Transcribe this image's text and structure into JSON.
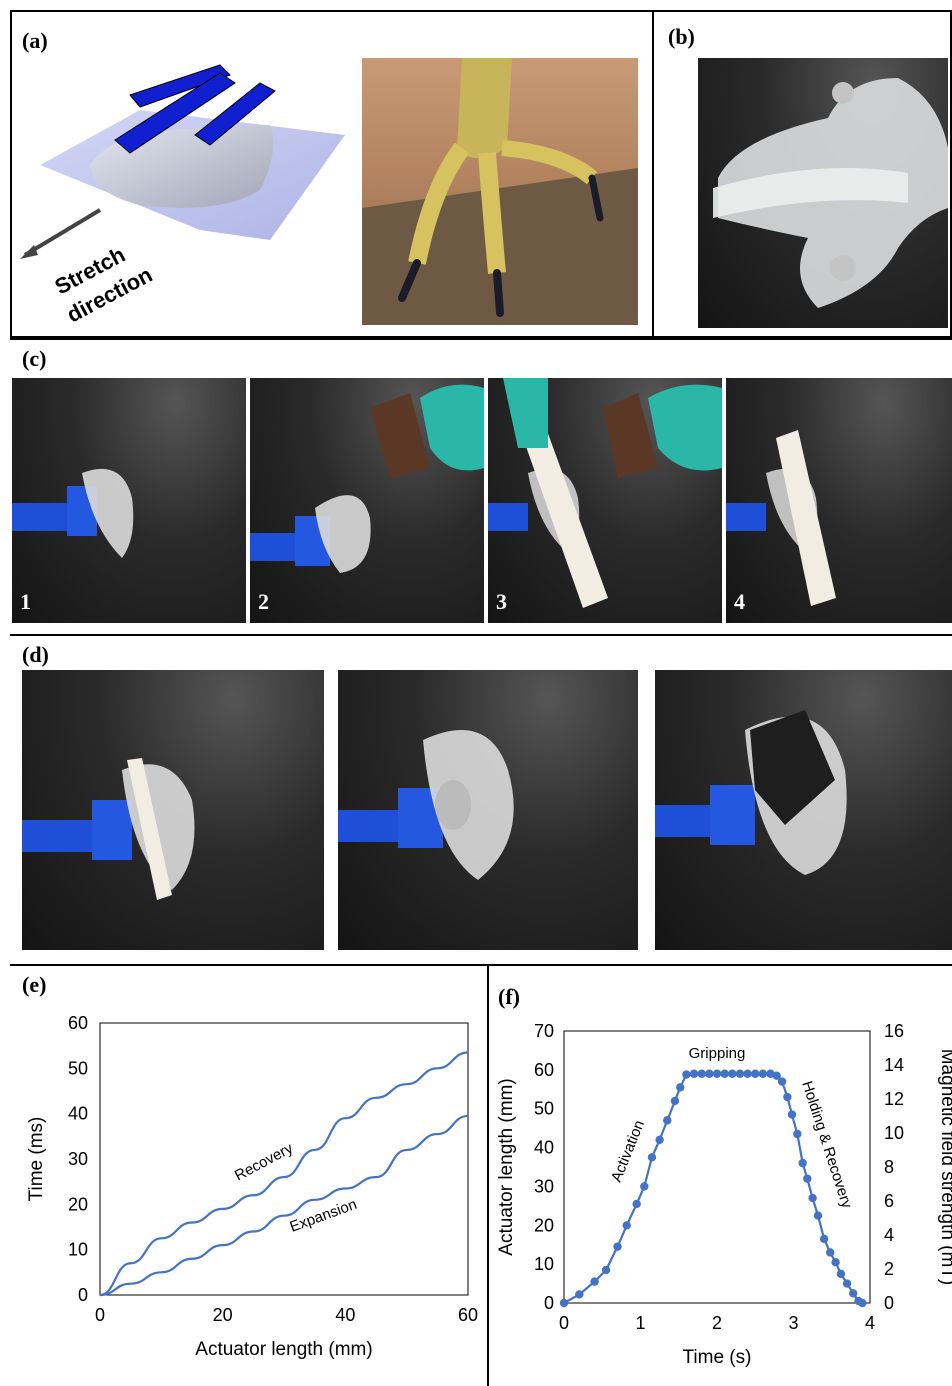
{
  "panels": {
    "a": {
      "label": "(a)",
      "stretch_text_1": "Stretch",
      "stretch_text_2": "direction"
    },
    "b": {
      "label": "(b)"
    },
    "c": {
      "label": "(c)",
      "frames": [
        "1",
        "2",
        "3",
        "4"
      ]
    },
    "d": {
      "label": "(d)"
    },
    "e": {
      "label": "(e)"
    },
    "f": {
      "label": "(f)"
    }
  },
  "chart_data": [
    {
      "type": "line",
      "panel": "e",
      "xlabel": "Actuator length (mm)",
      "ylabel": "Time (ms)",
      "xlim": [
        0,
        60
      ],
      "ylim": [
        0,
        60
      ],
      "xticks": [
        0,
        20,
        40,
        60
      ],
      "yticks": [
        0,
        10,
        20,
        30,
        40,
        50,
        60
      ],
      "grid": false,
      "color": "#4472C4",
      "series": [
        {
          "name": "Recovery",
          "x": [
            0,
            5,
            10,
            15,
            20,
            25,
            30,
            35,
            40,
            45,
            50,
            55,
            60
          ],
          "y": [
            0,
            7,
            12.5,
            16,
            19,
            22,
            26,
            32,
            39,
            43.5,
            46.5,
            50,
            53.5
          ]
        },
        {
          "name": "Expansion",
          "x": [
            0,
            5,
            10,
            15,
            20,
            25,
            30,
            35,
            40,
            45,
            50,
            55,
            60
          ],
          "y": [
            0,
            2.5,
            5,
            8,
            11,
            14,
            17.5,
            21,
            23.5,
            26,
            32,
            35.5,
            39.5
          ]
        }
      ],
      "annotations": [
        "Recovery",
        "Expansion"
      ]
    },
    {
      "type": "line",
      "panel": "f",
      "xlabel": "Time (s)",
      "ylabel": "Actuator length (mm)",
      "y2label": "Magnetic field strength (mT)",
      "xlim": [
        0,
        4
      ],
      "ylim": [
        0,
        70
      ],
      "y2lim": [
        0,
        16
      ],
      "xticks": [
        0,
        1,
        2,
        3,
        4
      ],
      "yticks": [
        0,
        10,
        20,
        30,
        40,
        50,
        60,
        70
      ],
      "y2ticks": [
        0,
        2,
        4,
        6,
        8,
        10,
        12,
        14,
        16
      ],
      "grid": false,
      "color": "#4472C4",
      "series": [
        {
          "x": [
            0,
            0.2,
            0.4,
            0.55,
            0.7,
            0.82,
            0.95,
            1.05,
            1.15,
            1.25,
            1.35,
            1.45,
            1.52,
            1.6,
            1.7,
            1.8,
            1.9,
            2.0,
            2.1,
            2.2,
            2.3,
            2.4,
            2.5,
            2.6,
            2.7,
            2.78,
            2.85,
            2.92,
            2.98,
            3.05,
            3.12,
            3.18,
            3.25,
            3.32,
            3.4,
            3.48,
            3.55,
            3.62,
            3.7,
            3.78,
            3.85,
            3.9
          ],
          "y": [
            0,
            2.2,
            5.5,
            8.5,
            14.5,
            20,
            25.5,
            30,
            37.5,
            42,
            47,
            52,
            55.5,
            58.8,
            59,
            59,
            59,
            59,
            59,
            59,
            59,
            59,
            59,
            59,
            59,
            58.5,
            57,
            53,
            48.5,
            43.5,
            36,
            32,
            27,
            22.5,
            16.5,
            13,
            10.5,
            7.5,
            5,
            2.5,
            0.5,
            0
          ]
        }
      ],
      "annotations": [
        "Gripping",
        "Activation",
        "Holding & Recovery"
      ]
    }
  ]
}
